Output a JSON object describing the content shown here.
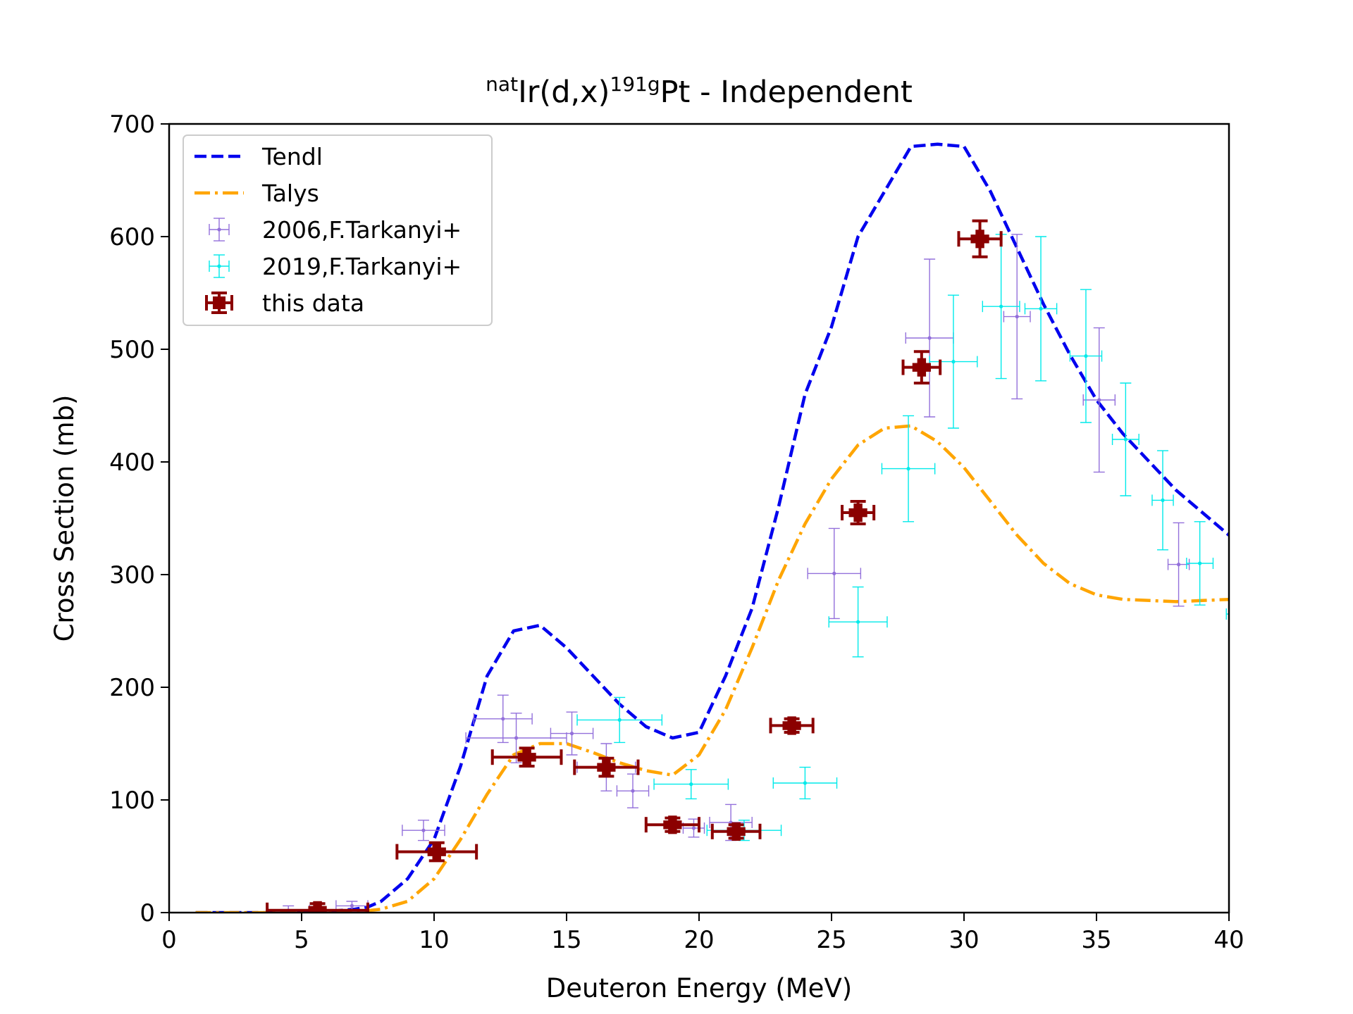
{
  "chart_data": {
    "type": "scatter",
    "title": {
      "prefix_sup": "nat",
      "base1": "Ir(d,x)",
      "sup2": "191g",
      "base2": "Pt - Independent"
    },
    "xlabel": "Deuteron Energy (MeV)",
    "ylabel": "Cross Section (mb)",
    "xlim": [
      0,
      40
    ],
    "ylim": [
      0,
      700
    ],
    "xticks": [
      0,
      5,
      10,
      15,
      20,
      25,
      30,
      35,
      40
    ],
    "yticks": [
      0,
      100,
      200,
      300,
      400,
      500,
      600,
      700
    ],
    "grid": false,
    "legend_position": "top-left",
    "legend": [
      "Tendl",
      "Talys",
      "2006,F.Tarkanyi+",
      "2019,F.Tarkanyi+",
      "this data"
    ],
    "series": [
      {
        "name": "Tendl",
        "kind": "line",
        "style": "dashed",
        "color": "#0000ee",
        "x": [
          1,
          2,
          3,
          4,
          5,
          6,
          7,
          7.5,
          8,
          9,
          10,
          11,
          12,
          13,
          14,
          15,
          16,
          17,
          18,
          19,
          20,
          21,
          22,
          23,
          24,
          25,
          26,
          27,
          28,
          29,
          30,
          31,
          32,
          33,
          34,
          35,
          36,
          37,
          38,
          39,
          40
        ],
        "y": [
          0,
          0,
          0,
          0,
          0.5,
          1,
          3,
          5,
          10,
          30,
          65,
          130,
          210,
          250,
          255,
          235,
          210,
          185,
          165,
          155,
          160,
          210,
          270,
          360,
          460,
          520,
          600,
          640,
          680,
          682,
          680,
          640,
          590,
          540,
          495,
          455,
          425,
          400,
          375,
          355,
          335
        ]
      },
      {
        "name": "Talys",
        "kind": "line",
        "style": "dashdot",
        "color": "#ffa500",
        "x": [
          1,
          2,
          3,
          4,
          5,
          6,
          7,
          8,
          9,
          10,
          11,
          12,
          13,
          14,
          15,
          16,
          17,
          18,
          19,
          20,
          21,
          22,
          23,
          24,
          25,
          26,
          27,
          28,
          29,
          30,
          31,
          32,
          33,
          34,
          35,
          36,
          37,
          38,
          39,
          40
        ],
        "y": [
          0,
          0,
          0,
          0,
          0,
          0,
          0.5,
          3,
          10,
          30,
          65,
          105,
          140,
          150,
          150,
          142,
          133,
          126,
          122,
          140,
          180,
          235,
          295,
          345,
          385,
          415,
          430,
          432,
          418,
          395,
          365,
          335,
          310,
          292,
          282,
          278,
          277,
          276,
          277,
          278
        ]
      },
      {
        "name": "2006,F.Tarkanyi+",
        "kind": "errorbar",
        "color": "#9370db",
        "points": [
          {
            "x": 4.5,
            "y": 2,
            "xerr": 0.8,
            "yerr": 4
          },
          {
            "x": 6.9,
            "y": 6,
            "xerr": 0.6,
            "yerr": 4
          },
          {
            "x": 9.6,
            "y": 73,
            "xerr": 0.8,
            "yerr": 9
          },
          {
            "x": 12.6,
            "y": 172,
            "xerr": 1.1,
            "yerr": 21
          },
          {
            "x": 13.1,
            "y": 155,
            "xerr": 1.9,
            "yerr": 22
          },
          {
            "x": 15.2,
            "y": 159,
            "xerr": 0.8,
            "yerr": 19
          },
          {
            "x": 16.5,
            "y": 129,
            "xerr": 1.1,
            "yerr": 21
          },
          {
            "x": 17.5,
            "y": 108,
            "xerr": 0.6,
            "yerr": 15
          },
          {
            "x": 19.8,
            "y": 75,
            "xerr": 0.4,
            "yerr": 8
          },
          {
            "x": 21.2,
            "y": 80,
            "xerr": 0.8,
            "yerr": 16
          },
          {
            "x": 25.1,
            "y": 301,
            "xerr": 1,
            "yerr": 40
          },
          {
            "x": 28.7,
            "y": 510,
            "xerr": 0.9,
            "yerr": 70
          },
          {
            "x": 32.0,
            "y": 529,
            "xerr": 0.5,
            "yerr": 73
          },
          {
            "x": 35.1,
            "y": 455,
            "xerr": 0.6,
            "yerr": 64
          },
          {
            "x": 38.1,
            "y": 309,
            "xerr": 0.4,
            "yerr": 37
          }
        ]
      },
      {
        "name": "2019,F.Tarkanyi+",
        "kind": "errorbar",
        "color": "#00eaea",
        "points": [
          {
            "x": 17.0,
            "y": 171,
            "xerr": 1.6,
            "yerr": 20
          },
          {
            "x": 19.7,
            "y": 114,
            "xerr": 1.4,
            "yerr": 13
          },
          {
            "x": 21.7,
            "y": 73,
            "xerr": 1.4,
            "yerr": 9
          },
          {
            "x": 24.0,
            "y": 115,
            "xerr": 1.2,
            "yerr": 14
          },
          {
            "x": 26.0,
            "y": 258,
            "xerr": 1.1,
            "yerr": 31
          },
          {
            "x": 27.9,
            "y": 394,
            "xerr": 1,
            "yerr": 47
          },
          {
            "x": 29.6,
            "y": 489,
            "xerr": 0.9,
            "yerr": 59
          },
          {
            "x": 31.4,
            "y": 538,
            "xerr": 0.7,
            "yerr": 64
          },
          {
            "x": 32.9,
            "y": 536,
            "xerr": 0.6,
            "yerr": 64
          },
          {
            "x": 34.6,
            "y": 494,
            "xerr": 0.6,
            "yerr": 59
          },
          {
            "x": 36.1,
            "y": 420,
            "xerr": 0.5,
            "yerr": 50
          },
          {
            "x": 37.5,
            "y": 366,
            "xerr": 0.4,
            "yerr": 44
          },
          {
            "x": 38.9,
            "y": 310,
            "xerr": 0.5,
            "yerr": 37
          },
          {
            "x": 40.3,
            "y": 265,
            "xerr": 0.4,
            "yerr": 32
          }
        ]
      },
      {
        "name": "this data",
        "kind": "errorbar",
        "color": "#8b0000",
        "points": [
          {
            "x": 5.6,
            "y": 2,
            "xerr": 1.9,
            "yerr": 6
          },
          {
            "x": 10.1,
            "y": 54,
            "xerr": 1.5,
            "yerr": 8
          },
          {
            "x": 13.5,
            "y": 138,
            "xerr": 1.3,
            "yerr": 8
          },
          {
            "x": 16.5,
            "y": 129,
            "xerr": 1.2,
            "yerr": 8
          },
          {
            "x": 19.0,
            "y": 78,
            "xerr": 1,
            "yerr": 6
          },
          {
            "x": 21.4,
            "y": 72,
            "xerr": 0.9,
            "yerr": 6
          },
          {
            "x": 23.5,
            "y": 166,
            "xerr": 0.8,
            "yerr": 6
          },
          {
            "x": 26.0,
            "y": 355,
            "xerr": 0.6,
            "yerr": 10
          },
          {
            "x": 28.4,
            "y": 484,
            "xerr": 0.7,
            "yerr": 14
          },
          {
            "x": 30.6,
            "y": 598,
            "xerr": 0.8,
            "yerr": 16
          }
        ]
      }
    ]
  }
}
